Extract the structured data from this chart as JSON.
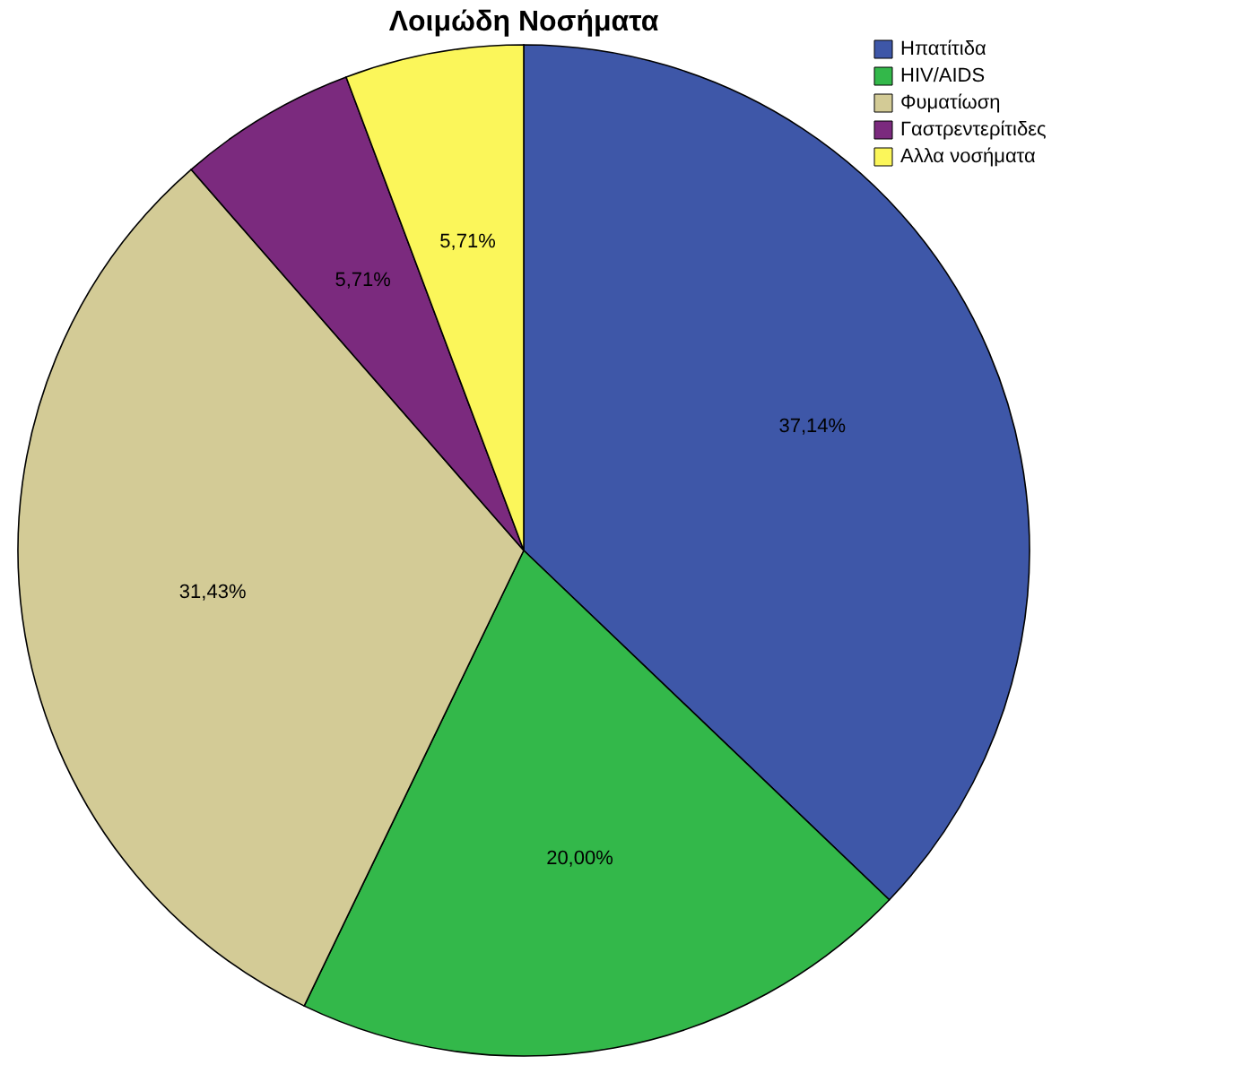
{
  "chart_data": {
    "type": "pie",
    "title": "Λοιμώδη Νοσήματα",
    "categories": [
      "Ηπατίτιδα",
      "HIV/AIDS",
      "Φυματίωση",
      "Γαστρεντερίτιδες",
      "Αλλα νοσήματα"
    ],
    "values": [
      37.14,
      20.0,
      31.43,
      5.71,
      5.71
    ],
    "value_labels": [
      "37,14%",
      "20,00%",
      "31,43%",
      "5,71%",
      "5,71%"
    ],
    "colors": [
      "#3e57a8",
      "#33b84a",
      "#d3cb96",
      "#7b2a7e",
      "#fbf65a"
    ],
    "legend": "top right"
  }
}
